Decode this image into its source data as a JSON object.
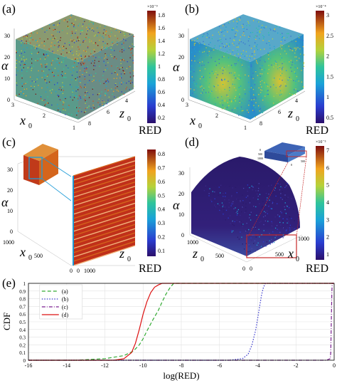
{
  "panels": {
    "a": {
      "letter": "(a)",
      "ylabel": "α",
      "xlabel": "x",
      "xsub": "0",
      "zlabel": "z",
      "zsub": "0",
      "yticks": [
        "0",
        "10",
        "20",
        "30"
      ],
      "xticks": [
        "3",
        "2",
        "1"
      ],
      "zticks": [
        "8",
        "6",
        "4"
      ],
      "colorbar": {
        "label": "RED",
        "exponent": "×10⁻⁹",
        "ticks": [
          "1.8",
          "1.6",
          "1.4",
          "1.2",
          "1",
          "0.8",
          "0.6",
          "0.4",
          "0.2"
        ]
      }
    },
    "b": {
      "letter": "(b)",
      "ylabel": "α",
      "xlabel": "x",
      "xsub": "0",
      "zlabel": "z",
      "zsub": "0",
      "yticks": [
        "0",
        "10",
        "20",
        "30"
      ],
      "xticks": [
        "3",
        "2",
        "1"
      ],
      "zticks": [
        "8",
        "6",
        "4"
      ],
      "colorbar": {
        "label": "RED",
        "exponent": "×10⁻⁴",
        "ticks": [
          "3",
          "2.5",
          "2",
          "1.5",
          "1",
          "0.5"
        ]
      }
    },
    "c": {
      "letter": "(c)",
      "ylabel": "α",
      "xlabel": "x",
      "xsub": "0",
      "zlabel": "z",
      "zsub": "0",
      "yticks": [
        "0",
        "10",
        "20",
        "30"
      ],
      "xticks": [
        "1000",
        "500",
        "0"
      ],
      "zticks": [
        "0",
        "1000"
      ],
      "colorbar": {
        "label": "RED",
        "exponent": "",
        "ticks": [
          "0.8",
          "0.7",
          "0.6",
          "0.5",
          "0.4",
          "0.3",
          "0.2",
          "0.1"
        ]
      }
    },
    "d": {
      "letter": "(d)",
      "ylabel": "α",
      "xlabel": "x",
      "xsub": "0",
      "zlabel": "z",
      "zsub": "0",
      "yticks": [
        "0",
        "10",
        "20",
        "30"
      ],
      "xticks": [
        "1000",
        "500",
        "0"
      ],
      "zticks": [
        "0",
        "500",
        "1000"
      ],
      "inset_ticks": [
        "0",
        "500",
        "1000",
        "0",
        "500"
      ],
      "colorbar": {
        "label": "RED",
        "exponent": "×10⁻⁵",
        "ticks": [
          "7",
          "6",
          "5",
          "4",
          "3",
          "2",
          "1"
        ]
      }
    }
  },
  "cdf_panel": {
    "letter": "(e)"
  },
  "chart_data": {
    "type": "line",
    "xlabel": "log(RED)",
    "ylabel": "CDF",
    "xlim": [
      -16,
      0
    ],
    "ylim": [
      0,
      1
    ],
    "xticks": [
      -16,
      -14,
      -12,
      -10,
      -8,
      -6,
      -4,
      -2,
      0
    ],
    "yticks": [
      0,
      0.1,
      0.2,
      0.3,
      0.4,
      0.5,
      0.6,
      0.7,
      0.8,
      0.9,
      1
    ],
    "grid": true,
    "legend_position": "top-left",
    "series": [
      {
        "name": "(a)",
        "color": "#33aa33",
        "dash": "5,3",
        "x": [
          -16,
          -13.5,
          -12,
          -11,
          -10.5,
          -10.2,
          -10,
          -9.8,
          -9.5,
          -9.2,
          -9,
          -8.8,
          -8.6,
          -8.4,
          0
        ],
        "y": [
          0,
          0,
          0.02,
          0.06,
          0.12,
          0.2,
          0.28,
          0.38,
          0.52,
          0.65,
          0.76,
          0.86,
          0.94,
          1.0,
          1.0
        ]
      },
      {
        "name": "(b)",
        "color": "#3333cc",
        "dash": "1.5,2",
        "x": [
          -16,
          -5.5,
          -4.8,
          -4.5,
          -4.3,
          -4.1,
          -4.0,
          -3.9,
          -3.8,
          -3.7,
          -3.6,
          0
        ],
        "y": [
          0,
          0,
          0.02,
          0.08,
          0.2,
          0.4,
          0.55,
          0.7,
          0.85,
          0.95,
          1.0,
          1.0
        ]
      },
      {
        "name": "(c)",
        "color": "#7a1f8f",
        "dash": "5,2,1,2",
        "x": [
          -16,
          -0.4,
          -0.2,
          -0.18,
          -0.15,
          -0.12,
          -0.1,
          0
        ],
        "y": [
          0,
          0,
          0.02,
          0.1,
          0.5,
          0.9,
          1.0,
          1.0
        ]
      },
      {
        "name": "(d)",
        "color": "#dd1111",
        "dash": "",
        "x": [
          -16,
          -11.5,
          -11,
          -10.6,
          -10.4,
          -10.2,
          -10.0,
          -9.8,
          -9.6,
          -9.4,
          -9.2,
          -9.0,
          -8.8,
          0
        ],
        "y": [
          0,
          0,
          0.02,
          0.1,
          0.22,
          0.4,
          0.6,
          0.76,
          0.88,
          0.95,
          0.98,
          1.0,
          1.0,
          1.0
        ]
      }
    ]
  }
}
